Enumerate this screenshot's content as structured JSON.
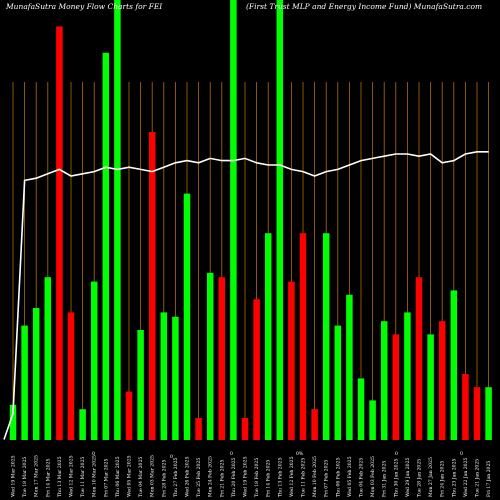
{
  "header": {
    "left": "MunafaSutra  Money Flow  Charts for FEI",
    "right": "(First Trust MLP and Energy Income   Fund) MunafaSutra.com"
  },
  "colors": {
    "background": "#000000",
    "up": "#00ff00",
    "down": "#ff0000",
    "gridline": "#b36b00",
    "line": "#ffffff",
    "text": "#ffffff"
  },
  "chart_data": {
    "type": "bar",
    "title": "",
    "xlabel": "",
    "ylabel": "",
    "grid": true,
    "ylim": [
      0,
      100
    ],
    "mid_markers": [
      "0",
      "0",
      "0",
      "0%",
      "0",
      "0"
    ],
    "categories": [
      "Wed 19 Mar 2025",
      "Tue 18 Mar 2025",
      "Mon 17 Mar 2025",
      "Fri 14 Mar 2025",
      "Thu 13 Mar 2025",
      "Wed 12 Mar 2025",
      "Tue 11 Mar 2025",
      "Mon 10 Mar 2025",
      "Fri 07 Mar 2025",
      "Thu 06 Mar 2025",
      "Wed 05 Mar 2025",
      "Tue 04 Mar 2025",
      "Mon 03 Mar 2025",
      "Fri 28 Feb 2025",
      "Thu 27 Feb 2025",
      "Wed 26 Feb 2025",
      "Tue 25 Feb 2025",
      "Mon 24 Feb 2025",
      "Fri 21 Feb 2025",
      "Thu 20 Feb 2025",
      "Wed 19 Feb 2025",
      "Tue 18 Feb 2025",
      "Fri 14 Feb 2025",
      "Thu 13 Feb 2025",
      "Wed 12 Feb 2025",
      "Tue 11 Feb 2025",
      "Mon 10 Feb 2025",
      "Fri 07 Feb 2025",
      "Thu 06 Feb 2025",
      "Wed 05 Feb 2025",
      "Tue 04 Feb 2025",
      "Mon 03 Feb 2025",
      "Fri 31 Jan 2025",
      "Thu 30 Jan 2025",
      "Wed 29 Jan 2025",
      "Tue 28 Jan 2025",
      "Mon 27 Jan 2025",
      "Fri 24 Jan 2025",
      "Thu 23 Jan 2025",
      "Wed 22 Jan 2025",
      "Tue 21 Jan 2025",
      "Fri 17 Jan 2025"
    ],
    "xtick_labels": [
      "Wed 19 Mar 2025",
      "Tue 18 Mar 2025",
      "Mon 17 Mar 2025",
      "Fri 14 Mar 2025",
      "Thu 13 Mar 2025",
      "Wed 12 Mar 2025",
      "Tue 11 Mar 2025",
      "Mon 10 Mar 2025",
      "Fri 07 Mar 2025",
      "Thu 06 Mar 2025",
      "Wed 05 Mar 2025",
      "Tue 04 Mar 2025",
      "Mon 03 Mar 2025",
      "Fri 28 Feb 2025",
      "Thu 27 Feb 2025",
      "Wed 26 Feb 2025",
      "Tue 25 Feb 2025",
      "Mon 24 Feb 2025",
      "Fri 21 Feb 2025",
      "Thu 20 Feb 2025",
      "Wed 19 Feb 2025",
      "Tue 18 Feb 2025",
      "Fri 14 Feb 2025",
      "Thu 13 Feb 2025",
      "Wed 12 Feb 2025",
      "Tue 11 Feb 2025",
      "Mon 10 Feb 2025",
      "Fri 07 Feb 2025",
      "Thu 06 Feb 2025",
      "Wed 05 Feb 2025",
      "Tue 04 Feb 2025",
      "Mon 03 Feb 2025",
      "Fri 31 Jan 2025",
      "Thu 30 Jan 2025",
      "Wed 29 Jan 2025",
      "Tue 28 Jan 2025",
      "Mon 27 Jan 2025",
      "Fri 24 Jan 2025",
      "Thu 23 Jan 2025",
      "Wed 22 Jan 2025",
      "Tue 21 Jan 2025",
      "Fri 17 Jan 2025"
    ],
    "series": [
      {
        "values": [
          8,
          26,
          30,
          37,
          94,
          29,
          7,
          36,
          88,
          100,
          11,
          25,
          70,
          29,
          28,
          56,
          5,
          38,
          37,
          100,
          5,
          32,
          47,
          100,
          36,
          47,
          7,
          47,
          26,
          33,
          14,
          9,
          27,
          24,
          29,
          37,
          24,
          27,
          34,
          15,
          12,
          12
        ],
        "directions": [
          "up",
          "up",
          "up",
          "up",
          "down",
          "down",
          "up",
          "up",
          "up",
          "up",
          "down",
          "up",
          "down",
          "up",
          "up",
          "up",
          "down",
          "up",
          "down",
          "up",
          "down",
          "down",
          "up",
          "up",
          "down",
          "down",
          "down",
          "up",
          "up",
          "up",
          "up",
          "up",
          "up",
          "down",
          "up",
          "down",
          "up",
          "down",
          "up",
          "down",
          "down",
          "up"
        ]
      },
      {
        "type": "line",
        "values": [
          6,
          59,
          59.5,
          60.5,
          61.5,
          60,
          60.5,
          61,
          62,
          61.5,
          62,
          61.5,
          61,
          62,
          63,
          63.5,
          63,
          64,
          63.5,
          63.5,
          64,
          63,
          62.5,
          62.5,
          61.5,
          61,
          60,
          61,
          61.5,
          62.5,
          63.5,
          64,
          64.5,
          65,
          65,
          64.5,
          65,
          63,
          63.5,
          65,
          65.5,
          65.5
        ]
      }
    ]
  }
}
